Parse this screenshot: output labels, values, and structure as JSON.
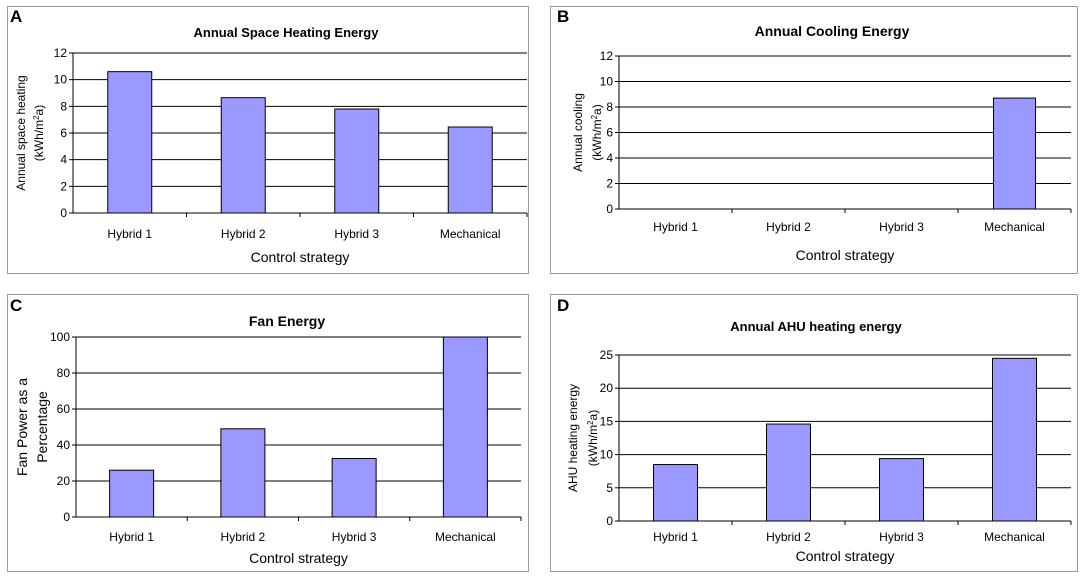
{
  "colors": {
    "bar_fill": "#9999ff",
    "bar_stroke": "#000000",
    "grid": "#000000"
  },
  "chart_data": [
    {
      "panel_label": "A",
      "type": "bar",
      "title": "Annual Space Heating Energy",
      "ylabel_line1": "Annual space heating",
      "ylabel_line2_pre": "(kWh/m",
      "ylabel_line2_sup": "2",
      "ylabel_line2_post": "a)",
      "xlabel": "Control strategy",
      "categories": [
        "Hybrid 1",
        "Hybrid 2",
        "Hybrid 3",
        "Mechanical"
      ],
      "values": [
        10.6,
        8.65,
        7.8,
        6.45
      ],
      "ylim": [
        0,
        12
      ],
      "yticks": [
        "0",
        "2",
        "4",
        "6",
        "8",
        "10",
        "12"
      ]
    },
    {
      "panel_label": "B",
      "type": "bar",
      "title": "Annual Cooling Energy",
      "ylabel_line1": "Annual cooling",
      "ylabel_line2_pre": "(kWh/m",
      "ylabel_line2_sup": "2",
      "ylabel_line2_post": "a)",
      "xlabel": "Control strategy",
      "categories": [
        "Hybrid 1",
        "Hybrid 2",
        "Hybrid 3",
        "Mechanical"
      ],
      "values": [
        0,
        0,
        0,
        8.7
      ],
      "ylim": [
        0,
        12
      ],
      "yticks": [
        "0",
        "2",
        "4",
        "6",
        "8",
        "10",
        "12"
      ]
    },
    {
      "panel_label": "C",
      "type": "bar",
      "title": "Fan Energy",
      "ylabel_line1": "Fan Power as a",
      "ylabel_line2_pre": "Percentage",
      "ylabel_line2_sup": "",
      "ylabel_line2_post": "",
      "xlabel": "Control strategy",
      "categories": [
        "Hybrid 1",
        "Hybrid 2",
        "Hybrid 3",
        "Mechanical"
      ],
      "values": [
        26,
        49,
        32.5,
        100
      ],
      "ylim": [
        0,
        100
      ],
      "yticks": [
        "0",
        "20",
        "40",
        "60",
        "80",
        "100"
      ]
    },
    {
      "panel_label": "D",
      "type": "bar",
      "title": "Annual AHU heating energy",
      "ylabel_line1": "AHU heating energy",
      "ylabel_line2_pre": "(kWh/m",
      "ylabel_line2_sup": "2",
      "ylabel_line2_post": "a)",
      "xlabel": "Control strategy",
      "categories": [
        "Hybrid 1",
        "Hybrid 2",
        "Hybrid 3",
        "Mechanical"
      ],
      "values": [
        8.5,
        14.6,
        9.4,
        24.5
      ],
      "ylim": [
        0,
        25
      ],
      "yticks": [
        "0",
        "5",
        "10",
        "15",
        "20",
        "25"
      ]
    }
  ]
}
